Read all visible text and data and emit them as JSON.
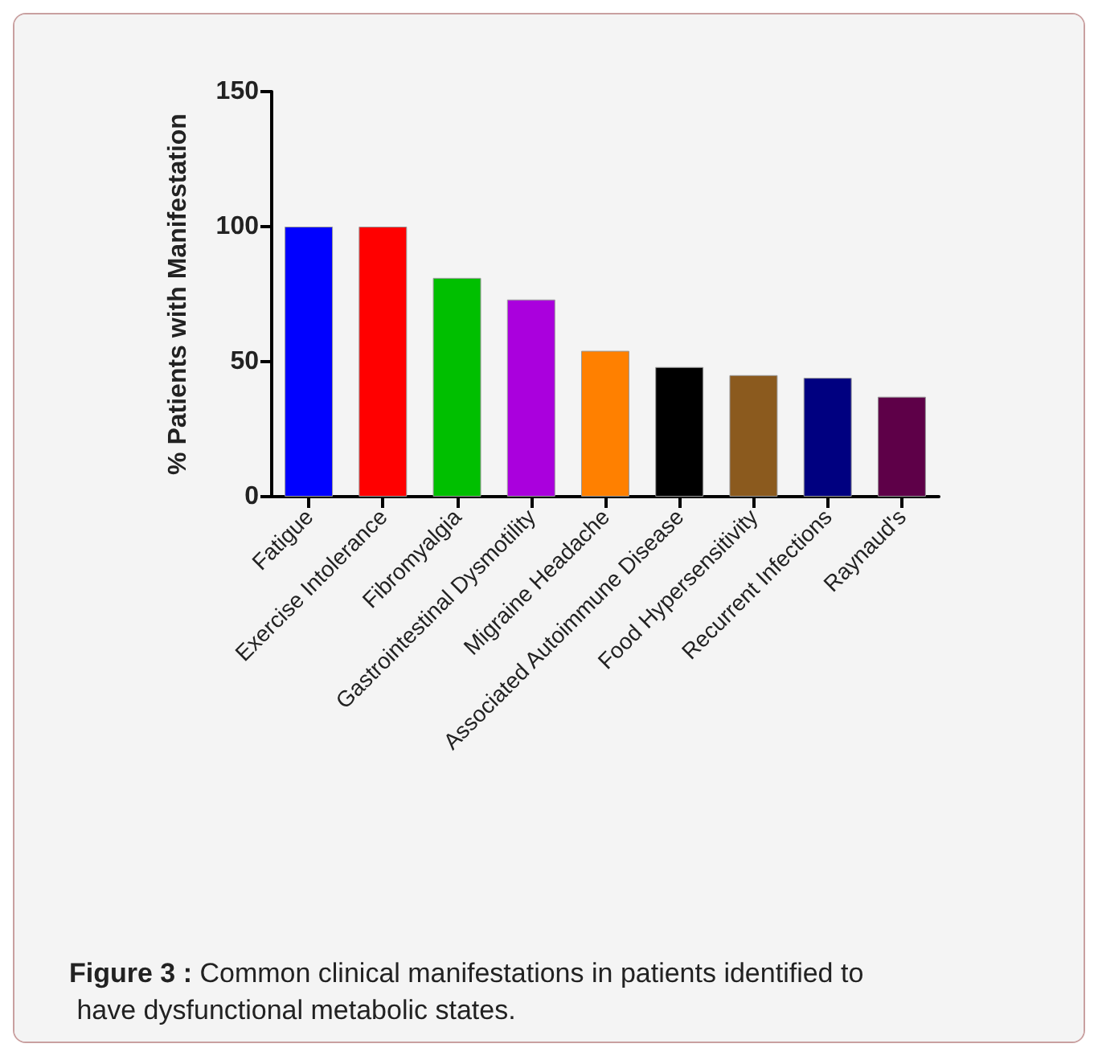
{
  "chart_data": {
    "type": "bar",
    "ylabel": "% Patients with Manifestation",
    "categories": [
      "Fatigue",
      "Exercise Intolerance",
      "Fibromyalgia",
      "Gastrointestinal Dysmotility",
      "Migraine Headache",
      "Associated Autoimmune Disease",
      "Food Hypersensitivity",
      "Recurrent Infections",
      "Raynaud's"
    ],
    "values": [
      100,
      100,
      81,
      73,
      54,
      48,
      45,
      44,
      37
    ],
    "colors": [
      "#0000ff",
      "#ff0000",
      "#00bf00",
      "#aa00dd",
      "#ff8000",
      "#000000",
      "#8b5a1e",
      "#000080",
      "#5e0048"
    ],
    "ylim": [
      0,
      150
    ],
    "yticks": [
      0,
      50,
      100,
      150
    ],
    "grid": false,
    "annotations": [
      "Figure 3 : Common clinical manifestations in patients identified to have dysfunctional metabolic states."
    ]
  }
}
